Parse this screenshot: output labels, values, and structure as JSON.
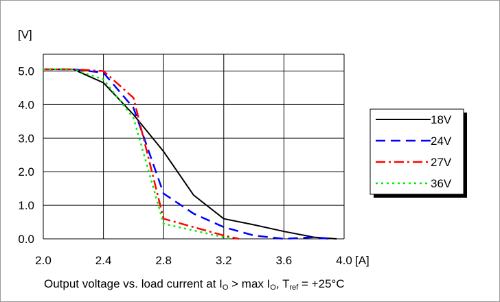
{
  "chart_data": {
    "type": "line",
    "title": "",
    "xlabel": "[A]",
    "ylabel": "[V]",
    "xlim": [
      2.0,
      4.0
    ],
    "ylim": [
      0.0,
      5.5
    ],
    "xticks": [
      "2.0",
      "2.4",
      "2.8",
      "3.2",
      "3.6",
      "4.0"
    ],
    "yticks": [
      "0.0",
      "1.0",
      "2.0",
      "3.0",
      "4.0",
      "5.0"
    ],
    "grid": true,
    "legend_position": "right",
    "series": [
      {
        "name": "18V",
        "color": "#000000",
        "dash": "solid",
        "x": [
          2.0,
          2.2,
          2.4,
          2.6,
          2.8,
          3.0,
          3.2,
          3.4,
          3.6,
          3.8,
          3.95
        ],
        "y": [
          5.05,
          5.05,
          4.65,
          3.7,
          2.6,
          1.3,
          0.6,
          0.42,
          0.22,
          0.05,
          0.0
        ]
      },
      {
        "name": "24V",
        "color": "#0000ff",
        "dash": "long-dash",
        "x": [
          2.0,
          2.2,
          2.4,
          2.6,
          2.8,
          3.0,
          3.2,
          3.4,
          3.6,
          3.8,
          3.9
        ],
        "y": [
          5.05,
          5.05,
          4.95,
          3.9,
          1.35,
          0.75,
          0.35,
          0.1,
          0.0,
          0.05,
          0.0
        ]
      },
      {
        "name": "27V",
        "color": "#ff0000",
        "dash": "dash-dot",
        "x": [
          2.0,
          2.2,
          2.4,
          2.6,
          2.8,
          3.0,
          3.2,
          3.3
        ],
        "y": [
          5.05,
          5.05,
          5.0,
          4.2,
          0.6,
          0.35,
          0.1,
          0.0
        ]
      },
      {
        "name": "36V",
        "color": "#00ee00",
        "dash": "dotted",
        "x": [
          2.0,
          2.2,
          2.4,
          2.6,
          2.8,
          3.0,
          3.2,
          3.25
        ],
        "y": [
          5.05,
          5.05,
          4.75,
          3.6,
          0.45,
          0.25,
          0.05,
          0.0
        ]
      }
    ]
  },
  "caption": {
    "prefix": "Output voltage vs. load current at I",
    "sub1": "O",
    "mid": " > max I",
    "sub2": "O",
    "mid2": ", T",
    "sub3": "ref",
    "suffix": " = +25°C"
  }
}
